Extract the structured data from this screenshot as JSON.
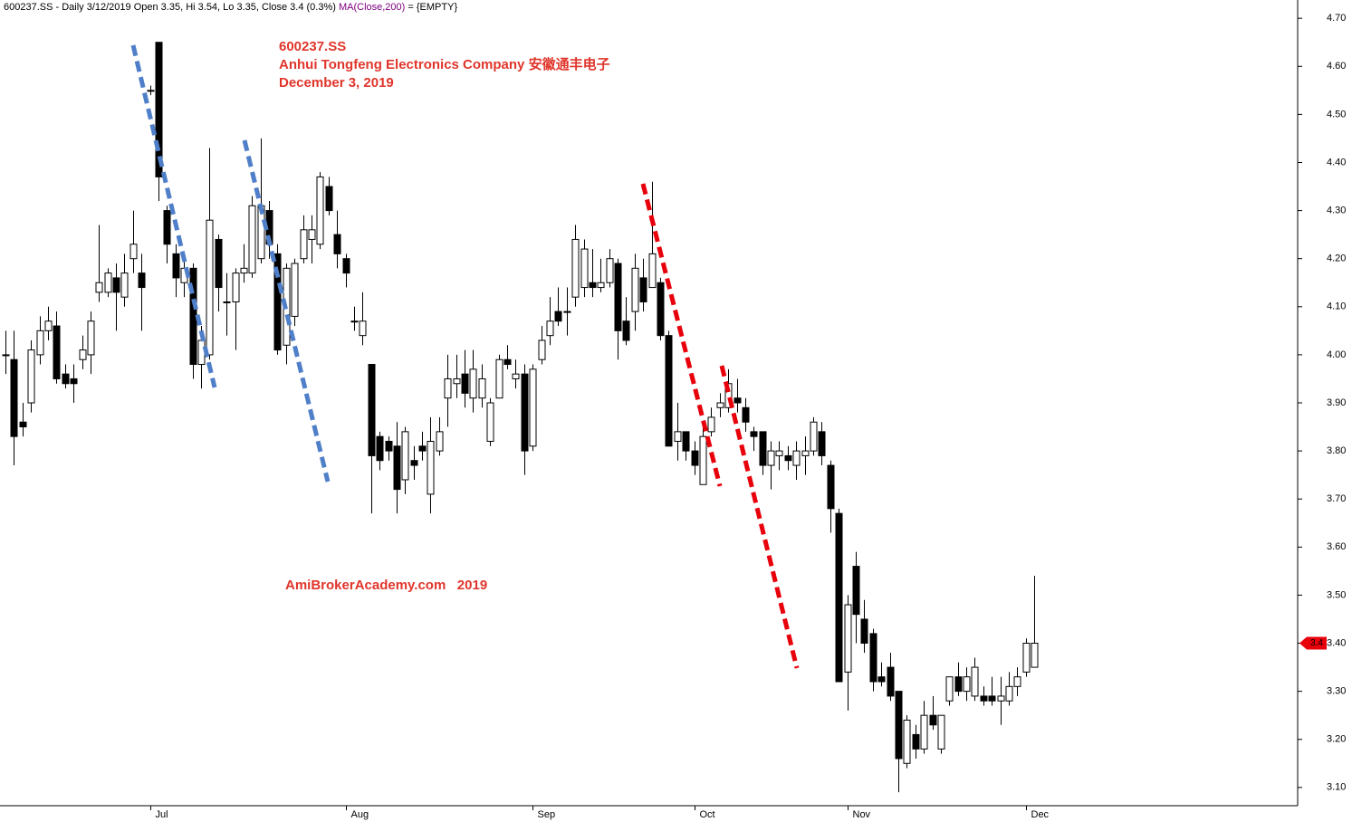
{
  "chart_data": {
    "type": "candlestick",
    "header": "600237.SS - Daily 3/12/2019 Open 3.35, Hi 3.54, Lo 3.35, Close 3.4 (0.3%)",
    "ma_label": "MA(Close,200)",
    "ma_value": "= {EMPTY}",
    "title_lines": [
      "600237.SS",
      "Anhui Tongfeng Electronics Company  安徽通丰电子",
      "December 3, 2019"
    ],
    "watermark": "AmiBrokerAcademy.com   2019",
    "up_color": "#ffffff",
    "down_color": "#000000",
    "marker_color": "#e8000b",
    "ylim": [
      3.062,
      4.738
    ],
    "yticks": [
      {
        "value": 3.1,
        "label": "3.10"
      },
      {
        "value": 3.2,
        "label": "3.20"
      },
      {
        "value": 3.3,
        "label": "3.30"
      },
      {
        "value": 3.4,
        "label": "3.40"
      },
      {
        "value": 3.5,
        "label": "3.50"
      },
      {
        "value": 3.6,
        "label": "3.60"
      },
      {
        "value": 3.7,
        "label": "3.70"
      },
      {
        "value": 3.8,
        "label": "3.80"
      },
      {
        "value": 3.9,
        "label": "3.90"
      },
      {
        "value": 4.0,
        "label": "4.00"
      },
      {
        "value": 4.1,
        "label": "4.10"
      },
      {
        "value": 4.2,
        "label": "4.20"
      },
      {
        "value": 4.3,
        "label": "4.30"
      },
      {
        "value": 4.4,
        "label": "4.40"
      },
      {
        "value": 4.5,
        "label": "4.50"
      },
      {
        "value": 4.6,
        "label": "4.60"
      },
      {
        "value": 4.7,
        "label": "4.70"
      }
    ],
    "categories": [
      null,
      null,
      null,
      null,
      null,
      null,
      null,
      null,
      null,
      null,
      null,
      null,
      null,
      null,
      null,
      null,
      null,
      "Jul",
      null,
      null,
      null,
      null,
      null,
      null,
      null,
      null,
      null,
      null,
      null,
      null,
      null,
      null,
      null,
      null,
      null,
      null,
      null,
      null,
      null,
      null,
      "Aug",
      null,
      null,
      null,
      null,
      null,
      null,
      null,
      null,
      null,
      null,
      null,
      null,
      null,
      null,
      null,
      null,
      null,
      null,
      null,
      null,
      null,
      "Sep",
      null,
      null,
      null,
      null,
      null,
      null,
      null,
      null,
      null,
      null,
      null,
      null,
      null,
      null,
      null,
      null,
      null,
      null,
      "Oct",
      null,
      null,
      null,
      null,
      null,
      null,
      null,
      null,
      null,
      null,
      null,
      null,
      null,
      null,
      null,
      null,
      null,
      "Nov",
      null,
      null,
      null,
      null,
      null,
      null,
      null,
      null,
      null,
      null,
      null,
      null,
      null,
      null,
      null,
      null,
      null,
      null,
      null,
      null,
      "Dec",
      null
    ],
    "open": [
      4.0,
      3.99,
      3.86,
      3.9,
      4.0,
      4.05,
      4.06,
      3.96,
      3.95,
      3.99,
      4.0,
      4.13,
      4.13,
      4.16,
      4.12,
      4.2,
      4.17,
      4.55,
      4.65,
      4.3,
      4.21,
      4.15,
      4.18,
      3.98,
      4.0,
      4.24,
      4.11,
      4.11,
      4.17,
      4.17,
      4.2,
      4.3,
      4.21,
      4.02,
      4.08,
      4.2,
      4.24,
      4.23,
      4.35,
      4.25,
      4.2,
      4.07,
      4.04,
      3.98,
      3.83,
      3.82,
      3.81,
      3.74,
      3.78,
      3.81,
      3.71,
      3.8,
      3.91,
      3.94,
      3.96,
      3.91,
      3.91,
      3.82,
      3.91,
      3.99,
      3.95,
      3.96,
      3.81,
      3.99,
      4.04,
      4.09,
      4.09,
      4.12,
      4.14,
      4.15,
      4.14,
      4.15,
      4.19,
      4.07,
      4.09,
      4.16,
      4.14,
      4.15,
      4.04,
      3.82,
      3.84,
      3.8,
      3.73,
      3.84,
      3.89,
      3.89,
      3.91,
      3.89,
      3.84,
      3.84,
      3.77,
      3.79,
      3.79,
      3.77,
      3.79,
      3.8,
      3.84,
      3.77,
      3.67,
      3.34,
      3.56,
      3.45,
      3.42,
      3.33,
      3.35,
      3.3,
      3.15,
      3.21,
      3.18,
      3.25,
      3.18,
      3.28,
      3.33,
      3.3,
      3.29,
      3.29,
      3.29,
      3.28,
      3.28,
      3.31,
      3.34,
      3.35
    ],
    "high": [
      4.05,
      4.05,
      3.9,
      4.03,
      4.08,
      4.1,
      4.09,
      3.98,
      3.98,
      4.04,
      4.09,
      4.27,
      4.18,
      4.19,
      4.21,
      4.3,
      4.21,
      4.56,
      4.65,
      4.31,
      4.23,
      4.21,
      4.19,
      4.06,
      4.43,
      4.25,
      4.17,
      4.18,
      4.23,
      4.33,
      4.45,
      4.32,
      4.23,
      4.19,
      4.2,
      4.29,
      4.29,
      4.38,
      4.37,
      4.3,
      4.21,
      4.1,
      4.13,
      3.98,
      3.84,
      3.83,
      3.86,
      3.85,
      3.81,
      3.84,
      3.87,
      3.87,
      4.0,
      4.0,
      4.01,
      4.01,
      3.98,
      3.91,
      4.0,
      4.02,
      3.99,
      3.98,
      3.98,
      4.06,
      4.12,
      4.14,
      4.14,
      4.27,
      4.24,
      4.22,
      4.2,
      4.22,
      4.2,
      4.12,
      4.21,
      4.2,
      4.36,
      4.16,
      4.05,
      3.9,
      3.84,
      3.82,
      3.85,
      3.89,
      3.92,
      3.97,
      3.95,
      3.91,
      3.85,
      3.84,
      3.82,
      3.82,
      3.81,
      3.82,
      3.83,
      3.87,
      3.86,
      3.78,
      3.68,
      3.5,
      3.59,
      3.49,
      3.43,
      3.36,
      3.38,
      3.3,
      3.25,
      3.23,
      3.28,
      3.29,
      3.25,
      3.33,
      3.36,
      3.35,
      3.37,
      3.31,
      3.33,
      3.33,
      3.34,
      3.35,
      3.41,
      3.54
    ],
    "low": [
      3.96,
      3.77,
      3.83,
      3.88,
      3.98,
      4.03,
      3.94,
      3.93,
      3.9,
      3.97,
      3.96,
      4.11,
      4.12,
      4.05,
      4.1,
      4.17,
      4.05,
      4.54,
      4.32,
      4.19,
      4.12,
      4.12,
      3.95,
      3.93,
      3.99,
      4.09,
      4.04,
      4.01,
      4.15,
      4.16,
      4.19,
      4.2,
      4.0,
      3.98,
      4.06,
      4.19,
      4.19,
      4.22,
      4.29,
      4.18,
      4.14,
      4.05,
      4.02,
      3.67,
      3.76,
      3.78,
      3.67,
      3.71,
      3.74,
      3.78,
      3.67,
      3.79,
      3.85,
      3.91,
      3.89,
      3.88,
      3.89,
      3.81,
      3.91,
      3.97,
      3.93,
      3.75,
      3.8,
      3.98,
      4.02,
      4.06,
      4.04,
      4.1,
      4.12,
      4.12,
      4.13,
      4.14,
      3.99,
      4.02,
      4.05,
      4.09,
      4.14,
      4.03,
      3.81,
      3.78,
      3.78,
      3.75,
      3.73,
      3.83,
      3.87,
      3.88,
      3.88,
      3.84,
      3.8,
      3.75,
      3.72,
      3.76,
      3.76,
      3.74,
      3.75,
      3.79,
      3.77,
      3.63,
      3.32,
      3.26,
      3.4,
      3.38,
      3.3,
      3.31,
      3.28,
      3.09,
      3.14,
      3.16,
      3.17,
      3.22,
      3.17,
      3.27,
      3.29,
      3.28,
      3.28,
      3.27,
      3.27,
      3.23,
      3.27,
      3.29,
      3.33,
      3.35
    ],
    "close": [
      4.0,
      3.83,
      3.85,
      4.01,
      4.05,
      4.07,
      3.95,
      3.94,
      3.94,
      4.01,
      4.07,
      4.15,
      4.17,
      4.13,
      4.17,
      4.23,
      4.14,
      4.55,
      4.37,
      4.23,
      4.16,
      4.18,
      3.98,
      4.03,
      4.28,
      4.14,
      4.11,
      4.17,
      4.18,
      4.31,
      4.31,
      4.23,
      4.01,
      4.18,
      4.19,
      4.26,
      4.26,
      4.37,
      4.3,
      4.21,
      4.17,
      4.07,
      4.07,
      3.79,
      3.78,
      3.8,
      3.72,
      3.84,
      3.77,
      3.8,
      3.82,
      3.84,
      3.95,
      3.95,
      3.92,
      3.97,
      3.95,
      3.9,
      3.99,
      3.98,
      3.96,
      3.8,
      3.97,
      4.03,
      4.07,
      4.07,
      4.09,
      4.24,
      4.22,
      4.14,
      4.15,
      4.2,
      4.05,
      4.03,
      4.18,
      4.11,
      4.21,
      4.04,
      3.81,
      3.84,
      3.8,
      3.77,
      3.83,
      3.87,
      3.9,
      3.94,
      3.9,
      3.86,
      3.83,
      3.77,
      3.8,
      3.8,
      3.78,
      3.8,
      3.8,
      3.86,
      3.79,
      3.68,
      3.32,
      3.48,
      3.46,
      3.4,
      3.32,
      3.32,
      3.29,
      3.16,
      3.24,
      3.18,
      3.25,
      3.23,
      3.25,
      3.33,
      3.3,
      3.33,
      3.35,
      3.28,
      3.28,
      3.29,
      3.31,
      3.33,
      3.4,
      3.4
    ]
  }
}
